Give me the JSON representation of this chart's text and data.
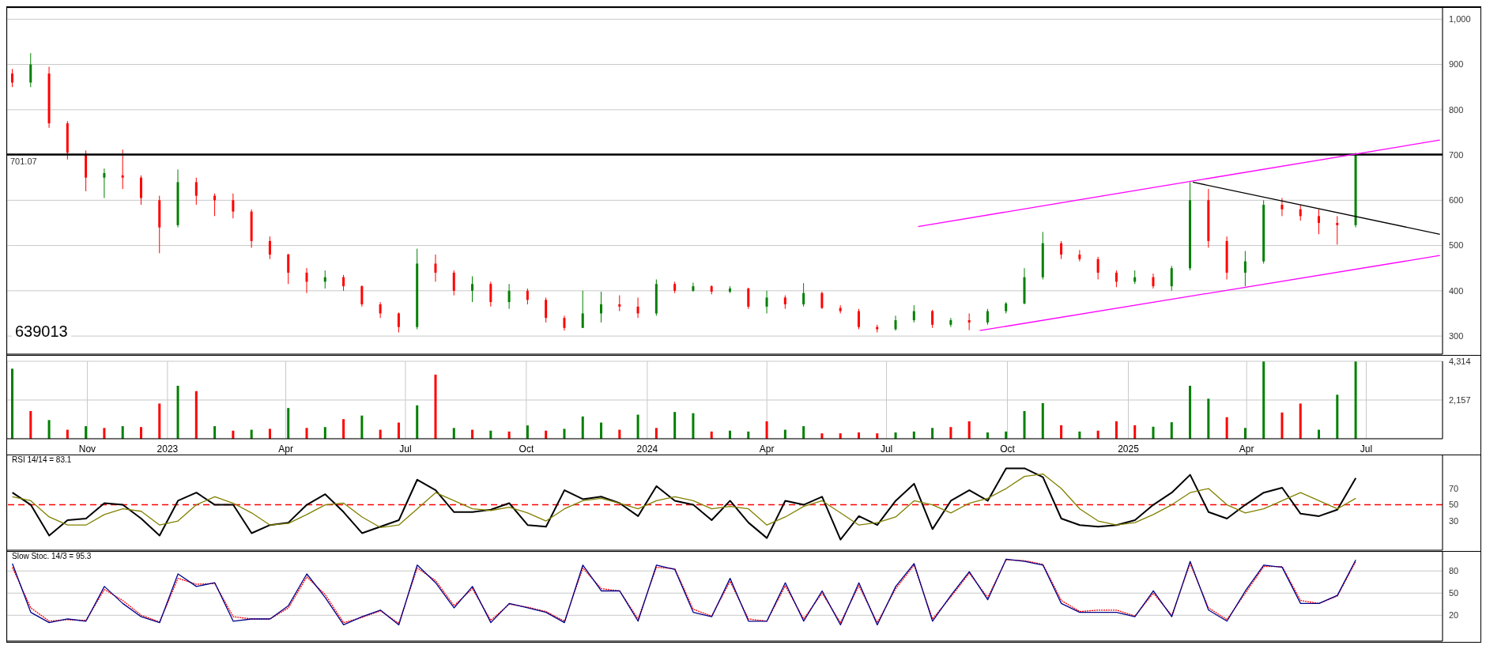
{
  "chart_data": [
    {
      "type": "candlestick",
      "annotations": [
        "639013"
      ],
      "x": [
        "2022-09-05",
        "2022-09-19",
        "2022-10-03",
        "2022-10-17",
        "2022-10-31",
        "2022-11-14",
        "2022-11-28",
        "2022-12-12",
        "2022-12-26",
        "2023-01-09",
        "2023-01-23",
        "2023-02-06",
        "2023-02-20",
        "2023-03-06",
        "2023-03-20",
        "2023-04-03",
        "2023-04-17",
        "2023-05-01",
        "2023-05-15",
        "2023-05-29",
        "2023-06-12",
        "2023-06-26",
        "2023-07-10",
        "2023-07-24",
        "2023-08-07",
        "2023-08-21",
        "2023-09-04",
        "2023-09-18",
        "2023-10-02",
        "2023-10-16",
        "2023-10-30",
        "2023-11-13",
        "2023-11-27",
        "2023-12-11",
        "2023-12-25",
        "2024-01-08",
        "2024-01-22",
        "2024-02-05",
        "2024-02-19",
        "2024-03-04",
        "2024-03-18",
        "2024-04-01",
        "2024-04-15",
        "2024-04-29",
        "2024-05-13",
        "2024-05-27",
        "2024-06-10",
        "2024-06-24",
        "2024-07-08",
        "2024-07-22",
        "2024-08-05",
        "2024-08-19",
        "2024-09-02",
        "2024-09-16",
        "2024-09-30",
        "2024-10-14",
        "2024-10-28",
        "2024-11-11",
        "2024-11-25",
        "2024-12-09",
        "2024-12-23",
        "2025-01-06",
        "2025-01-20",
        "2025-02-03",
        "2025-02-17",
        "2025-03-03",
        "2025-03-17",
        "2025-03-31",
        "2025-04-14",
        "2025-04-28",
        "2025-05-12",
        "2025-05-26",
        "2025-06-09",
        "2025-06-23"
      ],
      "ohlc": [
        [
          880,
          890,
          850,
          860
        ],
        [
          860,
          925,
          850,
          900
        ],
        [
          880,
          895,
          760,
          770
        ],
        [
          770,
          775,
          690,
          705
        ],
        [
          700,
          710,
          620,
          650
        ],
        [
          650,
          670,
          605,
          660
        ],
        [
          655,
          712,
          625,
          650
        ],
        [
          650,
          655,
          590,
          605
        ],
        [
          600,
          610,
          483,
          540
        ],
        [
          545,
          668,
          540,
          640
        ],
        [
          640,
          650,
          590,
          610
        ],
        [
          610,
          615,
          565,
          600
        ],
        [
          600,
          615,
          560,
          575
        ],
        [
          575,
          580,
          495,
          510
        ],
        [
          510,
          520,
          470,
          480
        ],
        [
          480,
          482,
          415,
          440
        ],
        [
          440,
          450,
          395,
          420
        ],
        [
          420,
          445,
          405,
          430
        ],
        [
          430,
          435,
          400,
          410
        ],
        [
          410,
          412,
          365,
          370
        ],
        [
          370,
          375,
          340,
          350
        ],
        [
          350,
          352,
          308,
          320
        ],
        [
          320,
          493,
          315,
          460
        ],
        [
          460,
          480,
          420,
          440
        ],
        [
          440,
          445,
          390,
          400
        ],
        [
          400,
          432,
          375,
          415
        ],
        [
          415,
          420,
          365,
          375
        ],
        [
          375,
          415,
          360,
          400
        ],
        [
          400,
          405,
          370,
          380
        ],
        [
          380,
          385,
          330,
          340
        ],
        [
          340,
          345,
          312,
          318
        ],
        [
          318,
          400,
          318,
          350
        ],
        [
          350,
          398,
          330,
          370
        ],
        [
          370,
          390,
          355,
          365
        ],
        [
          365,
          385,
          340,
          350
        ],
        [
          350,
          425,
          345,
          415
        ],
        [
          415,
          420,
          395,
          400
        ],
        [
          400,
          418,
          398,
          410
        ],
        [
          410,
          412,
          392,
          398
        ],
        [
          398,
          410,
          395,
          405
        ],
        [
          405,
          407,
          360,
          365
        ],
        [
          365,
          400,
          350,
          385
        ],
        [
          385,
          390,
          360,
          370
        ],
        [
          370,
          417,
          365,
          395
        ],
        [
          395,
          398,
          360,
          362
        ],
        [
          362,
          368,
          350,
          355
        ],
        [
          355,
          360,
          315,
          320
        ],
        [
          320,
          325,
          308,
          315
        ],
        [
          315,
          345,
          312,
          335
        ],
        [
          335,
          368,
          330,
          355
        ],
        [
          355,
          358,
          318,
          325
        ],
        [
          325,
          340,
          320,
          335
        ],
        [
          335,
          350,
          313,
          330
        ],
        [
          330,
          360,
          325,
          355
        ],
        [
          355,
          375,
          350,
          372
        ],
        [
          372,
          450,
          370,
          430
        ],
        [
          430,
          530,
          425,
          505
        ],
        [
          505,
          510,
          470,
          480
        ],
        [
          480,
          490,
          465,
          470
        ],
        [
          470,
          475,
          425,
          440
        ],
        [
          440,
          445,
          408,
          420
        ],
        [
          420,
          445,
          415,
          430
        ],
        [
          430,
          438,
          405,
          410
        ],
        [
          410,
          455,
          400,
          450
        ],
        [
          450,
          640,
          445,
          600
        ],
        [
          600,
          625,
          495,
          510
        ],
        [
          510,
          520,
          425,
          440
        ],
        [
          440,
          488,
          410,
          465
        ],
        [
          465,
          600,
          460,
          590
        ],
        [
          590,
          605,
          565,
          580
        ],
        [
          580,
          590,
          555,
          565
        ],
        [
          565,
          580,
          525,
          550
        ],
        [
          550,
          565,
          502,
          545
        ],
        [
          545,
          705,
          540,
          700
        ]
      ],
      "colors": [
        "#ff0000",
        "#008000",
        "#ff0000",
        "#ff0000",
        "#ff0000",
        "#008000",
        "#ff0000",
        "#ff0000",
        "#ff0000",
        "#008000",
        "#ff0000",
        "#ff0000",
        "#ff0000",
        "#ff0000",
        "#ff0000",
        "#ff0000",
        "#ff0000",
        "#008000",
        "#ff0000",
        "#ff0000",
        "#ff0000",
        "#ff0000",
        "#008000",
        "#ff0000",
        "#ff0000",
        "#008000",
        "#ff0000",
        "#008000",
        "#ff0000",
        "#ff0000",
        "#ff0000",
        "#008000",
        "#008000",
        "#ff0000",
        "#ff0000",
        "#008000",
        "#ff0000",
        "#008000",
        "#ff0000",
        "#008000",
        "#ff0000",
        "#008000",
        "#ff0000",
        "#008000",
        "#ff0000",
        "#ff0000",
        "#ff0000",
        "#ff0000",
        "#008000",
        "#008000",
        "#ff0000",
        "#008000",
        "#ff0000",
        "#008000",
        "#008000",
        "#008000",
        "#008000",
        "#ff0000",
        "#ff0000",
        "#ff0000",
        "#ff0000",
        "#008000",
        "#ff0000",
        "#008000",
        "#008000",
        "#ff0000",
        "#ff0000",
        "#008000",
        "#008000",
        "#ff0000",
        "#ff0000",
        "#ff0000",
        "#ff0000",
        "#008000"
      ],
      "series": [
        {
          "type": "line",
          "color": "#ff00ff",
          "x": [
            "2024-07-25",
            "2025-08-26"
          ],
          "values": [
            542,
            733
          ]
        },
        {
          "type": "line",
          "color": "#ff00ff",
          "x": [
            "2024-09-10",
            "2025-08-26"
          ],
          "values": [
            312,
            478
          ]
        },
        {
          "type": "line",
          "color": "#000000",
          "x": [
            "2025-02-19",
            "2025-08-26"
          ],
          "values": [
            640,
            525
          ]
        }
      ],
      "ref_lines": [
        {
          "axis": "y",
          "value": 701.07,
          "label": "701.07",
          "color": "#000000"
        }
      ],
      "xlim": [
        "2022-09-01",
        "2025-08-28"
      ],
      "xticks": [
        {
          "value": "2022-11-01",
          "label": null
        },
        {
          "value": "2023-01-01",
          "label": null
        },
        {
          "value": "2023-04-01",
          "label": null
        },
        {
          "value": "2023-07-01",
          "label": null
        },
        {
          "value": "2023-10-01",
          "label": null
        },
        {
          "value": "2024-01-01",
          "label": null
        },
        {
          "value": "2024-04-01",
          "label": null
        },
        {
          "value": "2024-07-01",
          "label": null
        },
        {
          "value": "2024-10-01",
          "label": null
        },
        {
          "value": "2025-01-01",
          "label": null
        },
        {
          "value": "2025-04-01",
          "label": null
        },
        {
          "value": "2025-07-01",
          "label": null
        }
      ],
      "ylim": [
        260,
        1025
      ],
      "yticks": [
        300,
        400,
        500,
        600,
        700,
        800,
        900,
        {
          "value": 1000,
          "label": "1,000"
        }
      ],
      "grid": true,
      "tick_labels": "y"
    },
    {
      "type": "bar",
      "x": [
        "2022-09-05",
        "2022-09-19",
        "2022-10-03",
        "2022-10-17",
        "2022-10-31",
        "2022-11-14",
        "2022-11-28",
        "2022-12-12",
        "2022-12-26",
        "2023-01-09",
        "2023-01-23",
        "2023-02-06",
        "2023-02-20",
        "2023-03-06",
        "2023-03-20",
        "2023-04-03",
        "2023-04-17",
        "2023-05-01",
        "2023-05-15",
        "2023-05-29",
        "2023-06-12",
        "2023-06-26",
        "2023-07-10",
        "2023-07-24",
        "2023-08-07",
        "2023-08-21",
        "2023-09-04",
        "2023-09-18",
        "2023-10-02",
        "2023-10-16",
        "2023-10-30",
        "2023-11-13",
        "2023-11-27",
        "2023-12-11",
        "2023-12-25",
        "2024-01-08",
        "2024-01-22",
        "2024-02-05",
        "2024-02-19",
        "2024-03-04",
        "2024-03-18",
        "2024-04-01",
        "2024-04-15",
        "2024-04-29",
        "2024-05-13",
        "2024-05-27",
        "2024-06-10",
        "2024-06-24",
        "2024-07-08",
        "2024-07-22",
        "2024-08-05",
        "2024-08-19",
        "2024-09-02",
        "2024-09-16",
        "2024-09-30",
        "2024-10-14",
        "2024-10-28",
        "2024-11-11",
        "2024-11-25",
        "2024-12-09",
        "2024-12-23",
        "2025-01-06",
        "2025-01-20",
        "2025-02-03",
        "2025-02-17",
        "2025-03-03",
        "2025-03-17",
        "2025-03-31",
        "2025-04-14",
        "2025-04-28",
        "2025-05-12",
        "2025-05-26",
        "2025-06-09",
        "2025-06-23"
      ],
      "values": [
        3900,
        1540,
        1040,
        500,
        700,
        600,
        700,
        650,
        1960,
        2950,
        2650,
        700,
        450,
        500,
        550,
        1710,
        600,
        650,
        1090,
        1290,
        500,
        900,
        1860,
        3570,
        600,
        500,
        450,
        400,
        740,
        450,
        550,
        1240,
        900,
        500,
        1340,
        600,
        1490,
        1420,
        400,
        450,
        400,
        970,
        500,
        700,
        300,
        300,
        350,
        300,
        350,
        400,
        600,
        650,
        970,
        350,
        400,
        1540,
        1980,
        750,
        400,
        450,
        970,
        750,
        670,
        920,
        2950,
        2230,
        1200,
        600,
        4300,
        1460,
        1960,
        500,
        2450,
        4300
      ],
      "colors": [
        "#008000",
        "#ff0000",
        "#008000",
        "#ff0000",
        "#008000",
        "#ff0000",
        "#008000",
        "#ff0000",
        "#ff0000",
        "#008000",
        "#ff0000",
        "#008000",
        "#ff0000",
        "#008000",
        "#ff0000",
        "#008000",
        "#ff0000",
        "#008000",
        "#ff0000",
        "#008000",
        "#ff0000",
        "#ff0000",
        "#008000",
        "#ff0000",
        "#008000",
        "#ff0000",
        "#008000",
        "#ff0000",
        "#008000",
        "#ff0000",
        "#008000",
        "#008000",
        "#008000",
        "#ff0000",
        "#008000",
        "#ff0000",
        "#008000",
        "#008000",
        "#ff0000",
        "#008000",
        "#008000",
        "#ff0000",
        "#008000",
        "#008000",
        "#ff0000",
        "#ff0000",
        "#ff0000",
        "#ff0000",
        "#008000",
        "#008000",
        "#008000",
        "#ff0000",
        "#ff0000",
        "#008000",
        "#008000",
        "#008000",
        "#008000",
        "#ff0000",
        "#008000",
        "#ff0000",
        "#ff0000",
        "#ff0000",
        "#008000",
        "#008000",
        "#008000",
        "#008000",
        "#ff0000",
        "#008000",
        "#008000",
        "#ff0000",
        "#ff0000",
        "#008000",
        "#008000",
        "#008000"
      ],
      "xlim": [
        "2022-09-01",
        "2025-08-28"
      ],
      "xticks": [
        {
          "value": "2022-11-01",
          "label": "Nov"
        },
        {
          "value": "2023-01-01",
          "label": "2023"
        },
        {
          "value": "2023-04-01",
          "label": "Apr"
        },
        {
          "value": "2023-07-01",
          "label": "Jul"
        },
        {
          "value": "2023-10-01",
          "label": "Oct"
        },
        {
          "value": "2024-01-01",
          "label": "2024"
        },
        {
          "value": "2024-04-01",
          "label": "Apr"
        },
        {
          "value": "2024-07-01",
          "label": "Jul"
        },
        {
          "value": "2024-10-01",
          "label": "Oct"
        },
        {
          "value": "2025-01-01",
          "label": "2025"
        },
        {
          "value": "2025-04-01",
          "label": "Apr"
        },
        {
          "value": "2025-07-01",
          "label": "Jul"
        }
      ],
      "ylim": [
        0,
        4314
      ],
      "yticks": [
        {
          "value": 2157,
          "label": "2,157"
        },
        {
          "value": 4314,
          "label": "4,314"
        }
      ],
      "grid": true
    },
    {
      "type": "line",
      "annotations": [
        "RSI 14/14 = 83.1"
      ],
      "x": [
        "2022-09-05",
        "2022-09-19",
        "2022-10-03",
        "2022-10-17",
        "2022-10-31",
        "2022-11-14",
        "2022-11-28",
        "2022-12-12",
        "2022-12-26",
        "2023-01-09",
        "2023-01-23",
        "2023-02-06",
        "2023-02-20",
        "2023-03-06",
        "2023-03-20",
        "2023-04-03",
        "2023-04-17",
        "2023-05-01",
        "2023-05-15",
        "2023-05-29",
        "2023-06-12",
        "2023-06-26",
        "2023-07-10",
        "2023-07-24",
        "2023-08-07",
        "2023-08-21",
        "2023-09-04",
        "2023-09-18",
        "2023-10-02",
        "2023-10-16",
        "2023-10-30",
        "2023-11-13",
        "2023-11-27",
        "2023-12-11",
        "2023-12-25",
        "2024-01-08",
        "2024-01-22",
        "2024-02-05",
        "2024-02-19",
        "2024-03-04",
        "2024-03-18",
        "2024-04-01",
        "2024-04-15",
        "2024-04-29",
        "2024-05-13",
        "2024-05-27",
        "2024-06-10",
        "2024-06-24",
        "2024-07-08",
        "2024-07-22",
        "2024-08-05",
        "2024-08-19",
        "2024-09-02",
        "2024-09-16",
        "2024-09-30",
        "2024-10-14",
        "2024-10-28",
        "2024-11-11",
        "2024-11-25",
        "2024-12-09",
        "2024-12-23",
        "2025-01-06",
        "2025-01-20",
        "2025-02-03",
        "2025-02-17",
        "2025-03-03",
        "2025-03-17",
        "2025-03-31",
        "2025-04-14",
        "2025-04-28",
        "2025-05-12",
        "2025-05-26",
        "2025-06-09",
        "2025-06-23"
      ],
      "series": [
        {
          "color": "#000000",
          "values": [
            65,
            50,
            12,
            31,
            33,
            52,
            50,
            33,
            12,
            55,
            65,
            50,
            50,
            15,
            25,
            28,
            50,
            63,
            41,
            15,
            23,
            31,
            81,
            68,
            41,
            41,
            44,
            52,
            25,
            23,
            68,
            57,
            60,
            52,
            36,
            73,
            55,
            50,
            31,
            55,
            28,
            9,
            55,
            50,
            60,
            7,
            36,
            25,
            55,
            76,
            20,
            55,
            68,
            55,
            95,
            95,
            84,
            33,
            25,
            23,
            25,
            31,
            50,
            65,
            87,
            41,
            33,
            50,
            65,
            71,
            39,
            36,
            44,
            83
          ]
        },
        {
          "color": "#808000",
          "values": [
            60,
            55,
            35,
            25,
            25,
            38,
            45,
            42,
            25,
            30,
            50,
            60,
            52,
            40,
            25,
            27,
            38,
            50,
            52,
            35,
            22,
            25,
            45,
            65,
            55,
            45,
            43,
            47,
            40,
            30,
            45,
            55,
            58,
            52,
            45,
            55,
            60,
            55,
            45,
            48,
            45,
            25,
            35,
            48,
            55,
            40,
            25,
            28,
            35,
            55,
            50,
            40,
            52,
            58,
            70,
            85,
            88,
            70,
            45,
            30,
            25,
            28,
            38,
            50,
            65,
            70,
            50,
            40,
            45,
            55,
            65,
            55,
            45,
            58
          ]
        }
      ],
      "ref_lines": [
        {
          "axis": "y",
          "value": 50,
          "color": "#ff0000",
          "line_style": "dashed"
        }
      ],
      "xlim": [
        "2022-09-01",
        "2025-08-28"
      ],
      "xticks": [
        {
          "value": "2022-11-01",
          "label": null
        },
        {
          "value": "2023-01-01",
          "label": null
        },
        {
          "value": "2023-04-01",
          "label": null
        },
        {
          "value": "2023-07-01",
          "label": null
        },
        {
          "value": "2023-10-01",
          "label": null
        },
        {
          "value": "2024-01-01",
          "label": null
        },
        {
          "value": "2024-04-01",
          "label": null
        },
        {
          "value": "2024-07-01",
          "label": null
        },
        {
          "value": "2024-10-01",
          "label": null
        },
        {
          "value": "2025-01-01",
          "label": null
        },
        {
          "value": "2025-04-01",
          "label": null
        },
        {
          "value": "2025-07-01",
          "label": null
        }
      ],
      "ylim": [
        -6,
        111
      ],
      "yticks": [
        30,
        50,
        70
      ],
      "grid": "x",
      "tick_labels": "y"
    },
    {
      "type": "line",
      "annotations": [
        "Slow Stoc. 14/3 = 95.3"
      ],
      "x": [
        "2022-09-05",
        "2022-09-19",
        "2022-10-03",
        "2022-10-17",
        "2022-10-31",
        "2022-11-14",
        "2022-11-28",
        "2022-12-12",
        "2022-12-26",
        "2023-01-09",
        "2023-01-23",
        "2023-02-06",
        "2023-02-20",
        "2023-03-06",
        "2023-03-20",
        "2023-04-03",
        "2023-04-17",
        "2023-05-01",
        "2023-05-15",
        "2023-05-29",
        "2023-06-12",
        "2023-06-26",
        "2023-07-10",
        "2023-07-24",
        "2023-08-07",
        "2023-08-21",
        "2023-09-04",
        "2023-09-18",
        "2023-10-02",
        "2023-10-16",
        "2023-10-30",
        "2023-11-13",
        "2023-11-27",
        "2023-12-11",
        "2023-12-25",
        "2024-01-08",
        "2024-01-22",
        "2024-02-05",
        "2024-02-19",
        "2024-03-04",
        "2024-03-18",
        "2024-04-01",
        "2024-04-15",
        "2024-04-29",
        "2024-05-13",
        "2024-05-27",
        "2024-06-10",
        "2024-06-24",
        "2024-07-08",
        "2024-07-22",
        "2024-08-05",
        "2024-08-19",
        "2024-09-02",
        "2024-09-16",
        "2024-09-30",
        "2024-10-14",
        "2024-10-28",
        "2024-11-11",
        "2024-11-25",
        "2024-12-09",
        "2024-12-23",
        "2025-01-06",
        "2025-01-20",
        "2025-02-03",
        "2025-02-17",
        "2025-03-03",
        "2025-03-17",
        "2025-03-31",
        "2025-04-14",
        "2025-04-28",
        "2025-05-12",
        "2025-05-26",
        "2025-06-09",
        "2025-06-23"
      ],
      "series": [
        {
          "color": "#ff0000",
          "line_style": "dotted",
          "values": [
            85,
            30,
            12,
            14,
            13,
            55,
            40,
            20,
            11,
            70,
            62,
            63,
            18,
            15,
            15,
            30,
            72,
            48,
            10,
            17,
            26,
            9,
            84,
            67,
            33,
            56,
            13,
            35,
            31,
            25,
            12,
            84,
            56,
            53,
            15,
            85,
            83,
            28,
            19,
            66,
            15,
            12,
            60,
            15,
            50,
            10,
            60,
            10,
            56,
            88,
            15,
            45,
            77,
            44,
            95,
            94,
            89,
            40,
            25,
            27,
            27,
            19,
            50,
            20,
            90,
            30,
            14,
            50,
            86,
            86,
            40,
            36,
            46,
            93
          ]
        },
        {
          "color": "#00008b",
          "values": [
            90,
            24,
            10,
            15,
            12,
            59,
            36,
            18,
            10,
            76,
            59,
            64,
            12,
            15,
            15,
            33,
            76,
            44,
            7,
            18,
            27,
            7,
            88,
            64,
            30,
            59,
            10,
            36,
            30,
            24,
            10,
            88,
            53,
            53,
            12,
            88,
            82,
            24,
            18,
            70,
            12,
            12,
            64,
            12,
            53,
            7,
            64,
            7,
            59,
            90,
            12,
            47,
            79,
            41,
            96,
            93,
            88,
            36,
            24,
            24,
            24,
            18,
            53,
            18,
            93,
            27,
            12,
            53,
            88,
            85,
            36,
            36,
            47,
            95
          ]
        }
      ],
      "xlim": [
        "2022-09-01",
        "2025-08-28"
      ],
      "xticks": [
        {
          "value": "2022-11-01",
          "label": null
        },
        {
          "value": "2023-01-01",
          "label": null
        },
        {
          "value": "2023-04-01",
          "label": null
        },
        {
          "value": "2023-07-01",
          "label": null
        },
        {
          "value": "2023-10-01",
          "label": null
        },
        {
          "value": "2024-01-01",
          "label": null
        },
        {
          "value": "2024-04-01",
          "label": null
        },
        {
          "value": "2024-07-01",
          "label": null
        },
        {
          "value": "2024-10-01",
          "label": null
        },
        {
          "value": "2025-01-01",
          "label": null
        },
        {
          "value": "2025-04-01",
          "label": null
        },
        {
          "value": "2025-07-01",
          "label": null
        }
      ],
      "ylim": [
        -15,
        106
      ],
      "yticks": [
        20,
        50,
        80
      ],
      "grid": true,
      "tick_labels": "y"
    }
  ]
}
